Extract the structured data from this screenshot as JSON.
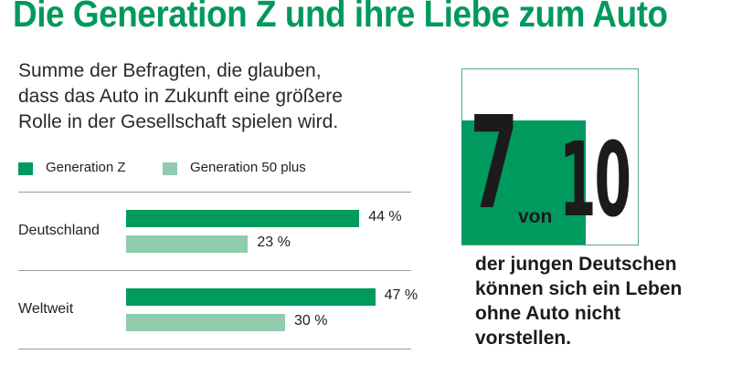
{
  "title": "Die Generation Z und ihre Liebe zum Auto",
  "subtitle": [
    "Summe der Befragten, die glauben,",
    "dass das Auto in Zukunft eine größere",
    "Rolle in der Gesellschaft spielen wird."
  ],
  "colors": {
    "title": "#00995c",
    "generation_z": "#009a5e",
    "generation_50_plus": "#8fcbad"
  },
  "chart_data": {
    "type": "bar",
    "orientation": "horizontal",
    "categories": [
      "Deutschland",
      "Weltweit"
    ],
    "series": [
      {
        "name": "Generation Z",
        "values": [
          44,
          47
        ],
        "labels": [
          "44 %",
          "47 %"
        ]
      },
      {
        "name": "Generation 50 plus",
        "values": [
          23,
          30
        ],
        "labels": [
          "23 %",
          "30 %"
        ]
      }
    ],
    "unit": "%",
    "legend": "top-left",
    "grid": false
  },
  "callout": {
    "numerator": "7",
    "connector": "von",
    "denominator": "10",
    "fraction": 0.7,
    "text": [
      "der jungen Deutschen",
      "können sich ein Leben",
      "ohne Auto nicht",
      "vorstellen."
    ]
  }
}
